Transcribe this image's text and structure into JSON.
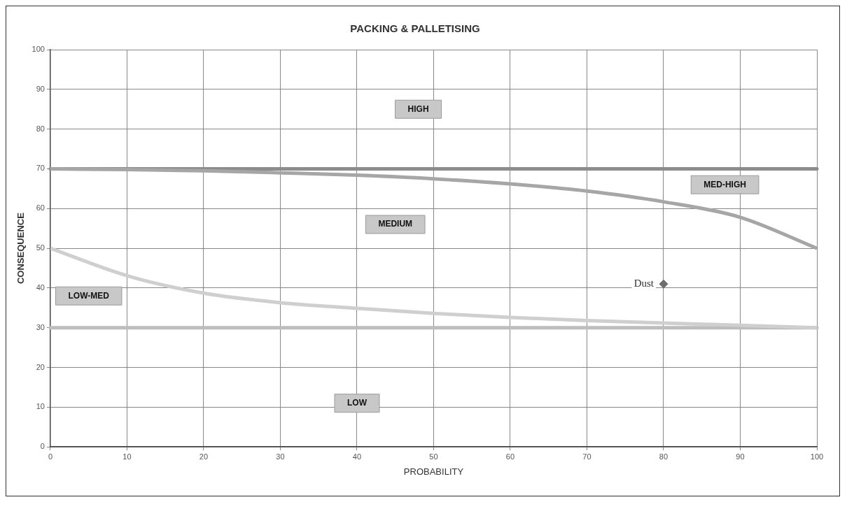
{
  "chart_data": {
    "type": "line",
    "title": "PACKING & PALLETISING",
    "xlabel": "PROBABILITY",
    "ylabel": "CONSEQUENCE",
    "xlim": [
      0,
      100
    ],
    "xticks": [
      0,
      10,
      20,
      30,
      40,
      50,
      60,
      70,
      80,
      90,
      100
    ],
    "ylim": [
      0,
      100
    ],
    "yticks": [
      0,
      10,
      20,
      30,
      40,
      50,
      60,
      70,
      80,
      90,
      100
    ],
    "grid": true,
    "legend": false,
    "line_style": "solid",
    "ref_lines": [
      {
        "axis": "y",
        "value": 70,
        "color": "#8c8c8c"
      },
      {
        "axis": "y",
        "value": 30,
        "color": "#bdbdbd"
      }
    ],
    "series": [
      {
        "color": "#a6a6a6",
        "x": [
          0,
          10,
          20,
          30,
          40,
          50,
          60,
          70,
          80,
          90,
          100
        ],
        "values": [
          70,
          69.8,
          69.5,
          69,
          68.4,
          67.5,
          66.2,
          64.4,
          61.7,
          57.8,
          50
        ]
      },
      {
        "color": "#cfcfcf",
        "x": [
          0,
          10,
          20,
          30,
          40,
          50,
          60,
          70,
          80,
          90,
          100
        ],
        "values": [
          50,
          43.1,
          38.7,
          36.3,
          34.9,
          33.6,
          32.6,
          31.8,
          31.2,
          30.6,
          30
        ]
      },
      {
        "type": "scatter",
        "name": "Dust",
        "marker": "diamond",
        "color": "#6e6e6e",
        "x": [
          80
        ],
        "values": [
          41
        ]
      }
    ],
    "annotations": [
      "HIGH",
      "MED-HIGH",
      "MEDIUM",
      "LOW-MED",
      "LOW"
    ]
  }
}
